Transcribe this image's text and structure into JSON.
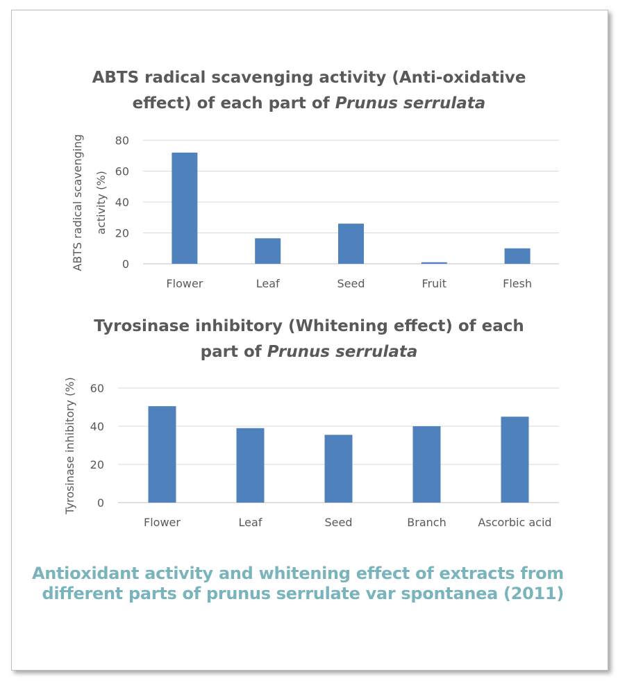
{
  "chart_data": [
    {
      "type": "bar",
      "title_pre": "ABTS radical scavenging activity (Anti-oxidative",
      "title_line2_pre": "effect) of each part of ",
      "title_species": "Prunus serrulata",
      "ylabel_line1": "ABTS radical scavenging",
      "ylabel_line2": "activity (%)",
      "categories": [
        "Flower",
        "Leaf",
        "Seed",
        "Fruit",
        "Flesh"
      ],
      "values": [
        72,
        16.5,
        26,
        1,
        10
      ],
      "ylim": [
        0,
        80
      ],
      "yticks": [
        0,
        20,
        40,
        60,
        80
      ],
      "color": "#4f81bd",
      "grid": true
    },
    {
      "type": "bar",
      "title_pre": "Tyrosinase inhibitory (Whitening effect) of each",
      "title_line2_pre": "part of ",
      "title_species": "Prunus serrulata",
      "ylabel": "Tyrosinase inhibitory (%)",
      "categories": [
        "Flower",
        "Leaf",
        "Seed",
        "Branch",
        "Ascorbic acid"
      ],
      "values": [
        50.5,
        39,
        35.5,
        40,
        45
      ],
      "ylim": [
        0,
        60
      ],
      "yticks": [
        0,
        20,
        40,
        60
      ],
      "color": "#4f81bd",
      "grid": true
    }
  ],
  "caption": {
    "line1": "Antioxidant activity and whitening effect of extracts from",
    "line2": "different parts of prunus serrulate var spontanea (2011)"
  }
}
